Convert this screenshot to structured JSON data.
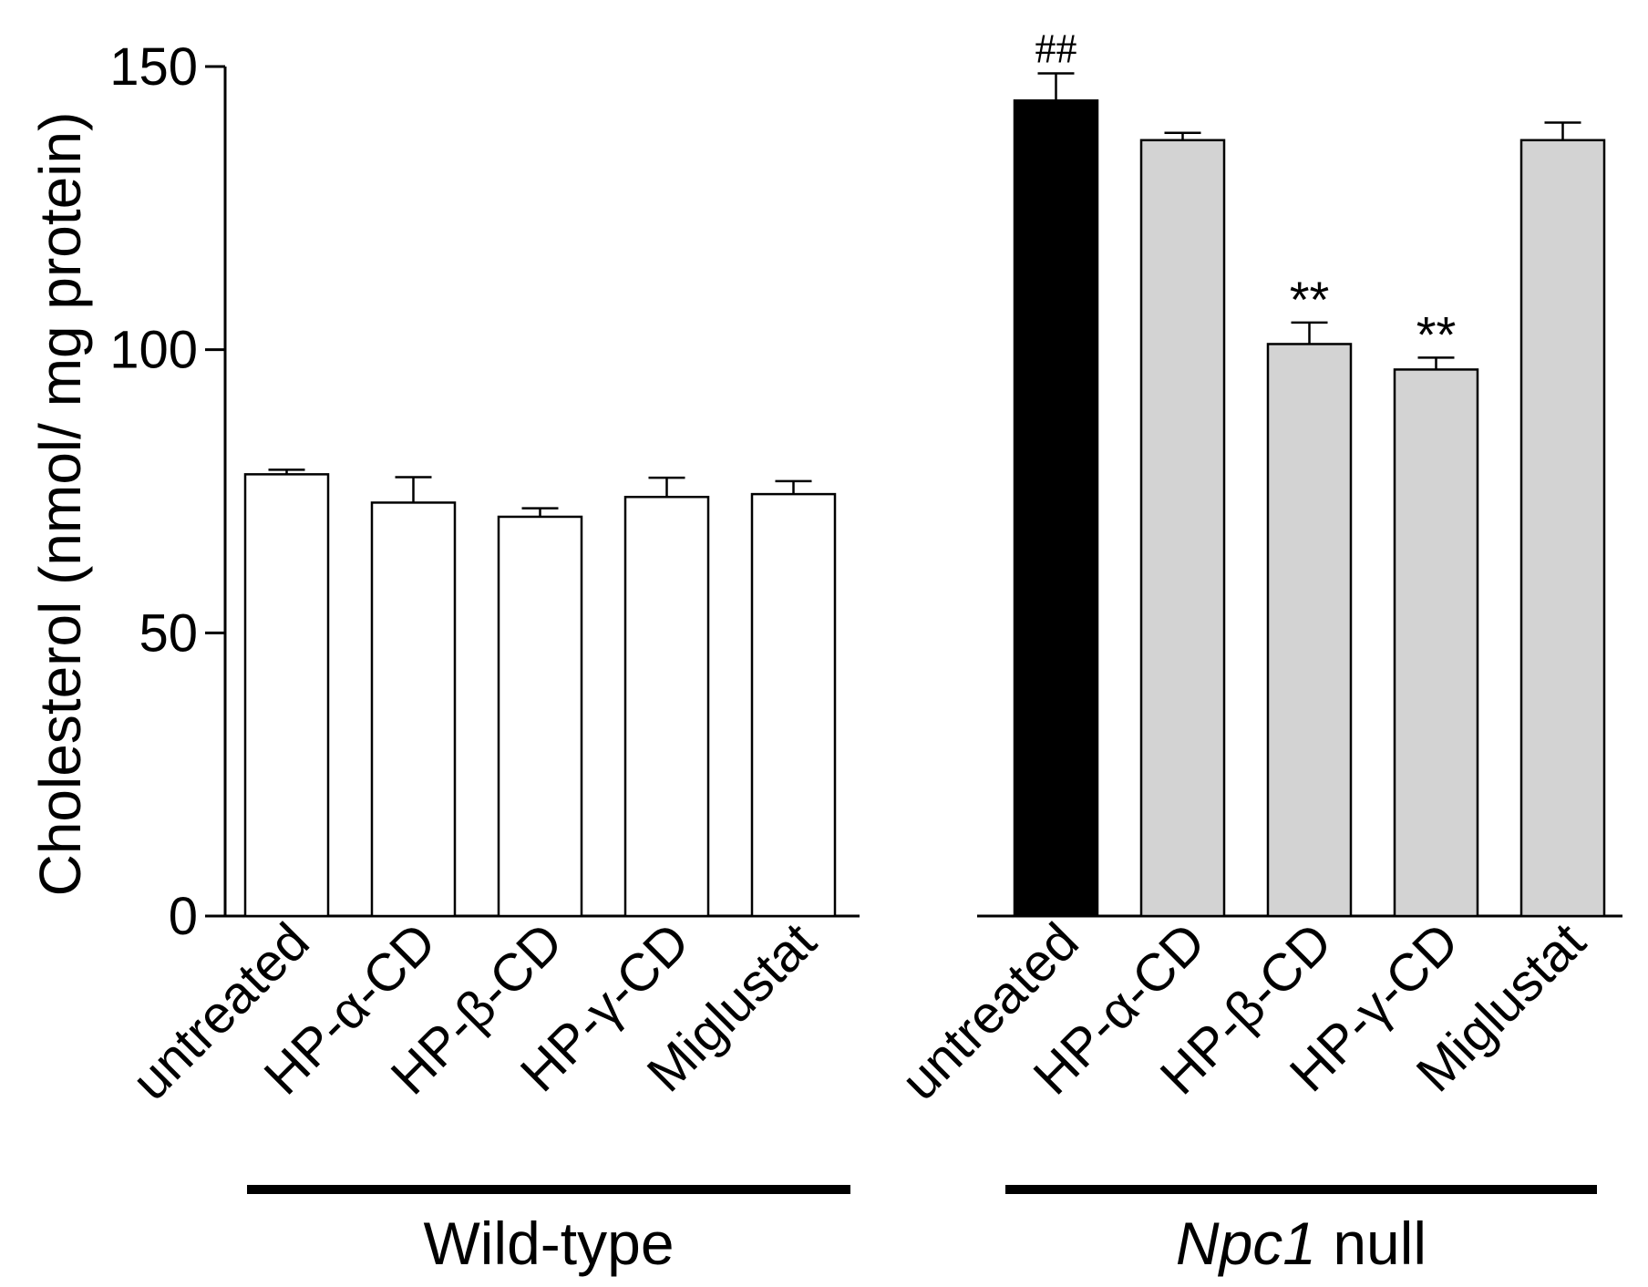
{
  "chart_data": {
    "type": "bar",
    "ylabel": "Cholesterol  (nmol/ mg protein)",
    "ylim": [
      0,
      150
    ],
    "yticks": [
      0,
      50,
      100,
      150
    ],
    "groups": [
      {
        "name": "Wild-type",
        "name_italic": "",
        "name_rest": "Wild-type",
        "categories": [
          "untreated",
          "HP-α-CD",
          "HP-β-CD",
          "HP-γ-CD",
          "Miglustat"
        ],
        "values": [
          78,
          73,
          70.5,
          74,
          74.5
        ],
        "errors": [
          0.8,
          4.5,
          1.5,
          3.4,
          2.3
        ],
        "colors": [
          "#ffffff",
          "#ffffff",
          "#ffffff",
          "#ffffff",
          "#ffffff"
        ],
        "annotations": [
          "",
          "",
          "",
          "",
          ""
        ]
      },
      {
        "name": "Npc1 null",
        "name_italic": "Npc1",
        "name_rest": " null",
        "categories": [
          "untreated",
          "HP-α-CD",
          "HP-β-CD",
          "HP-γ-CD",
          "Miglustat"
        ],
        "values": [
          144,
          137,
          101,
          96.5,
          137
        ],
        "errors": [
          4.8,
          1.3,
          3.8,
          2.1,
          3.1
        ],
        "colors": [
          "#000000",
          "#d3d3d3",
          "#d3d3d3",
          "#d3d3d3",
          "#d3d3d3"
        ],
        "annotations": [
          "##",
          "",
          "**",
          "**",
          ""
        ]
      }
    ]
  }
}
